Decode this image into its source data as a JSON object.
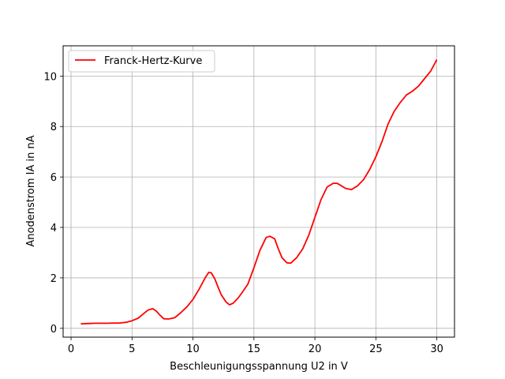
{
  "chart_data": {
    "type": "line",
    "title": "",
    "xlabel": "Beschleunigungsspannung U2 in V",
    "ylabel": "Anodenstrom IA in nA",
    "xlim": [
      -0.65,
      31.45
    ],
    "ylim": [
      -0.35,
      11.2
    ],
    "xticks": [
      0,
      5,
      10,
      15,
      20,
      25,
      30
    ],
    "yticks": [
      0,
      2,
      4,
      6,
      8,
      10
    ],
    "grid": true,
    "legend_placement": "top-left",
    "series": [
      {
        "name": "Franck-Hertz-Kurve",
        "color": "#ff0000",
        "x": [
          0.8,
          1.5,
          2.0,
          3.0,
          3.5,
          4.0,
          4.5,
          5.0,
          5.5,
          6.0,
          6.3,
          6.7,
          7.0,
          7.3,
          7.6,
          8.0,
          8.5,
          9.0,
          9.5,
          10.0,
          10.5,
          11.0,
          11.3,
          11.5,
          11.8,
          12.0,
          12.3,
          12.7,
          13.0,
          13.3,
          13.7,
          14.0,
          14.5,
          15.0,
          15.5,
          16.0,
          16.3,
          16.7,
          17.0,
          17.3,
          17.7,
          18.0,
          18.5,
          19.0,
          19.5,
          20.0,
          20.5,
          21.0,
          21.5,
          21.8,
          22.0,
          22.5,
          23.0,
          23.5,
          24.0,
          24.5,
          25.0,
          25.5,
          26.0,
          26.5,
          27.0,
          27.5,
          28.0,
          28.5,
          29.0,
          29.5,
          30.0
        ],
        "y": [
          0.18,
          0.19,
          0.2,
          0.2,
          0.21,
          0.21,
          0.24,
          0.3,
          0.4,
          0.6,
          0.72,
          0.78,
          0.68,
          0.52,
          0.38,
          0.37,
          0.42,
          0.62,
          0.85,
          1.15,
          1.55,
          2.0,
          2.22,
          2.2,
          1.95,
          1.7,
          1.35,
          1.05,
          0.93,
          1.0,
          1.2,
          1.4,
          1.75,
          2.4,
          3.1,
          3.6,
          3.65,
          3.55,
          3.15,
          2.8,
          2.6,
          2.58,
          2.8,
          3.15,
          3.7,
          4.4,
          5.1,
          5.6,
          5.75,
          5.75,
          5.7,
          5.55,
          5.5,
          5.65,
          5.9,
          6.3,
          6.8,
          7.4,
          8.1,
          8.6,
          8.95,
          9.25,
          9.4,
          9.6,
          9.9,
          10.2,
          10.65
        ]
      }
    ]
  }
}
